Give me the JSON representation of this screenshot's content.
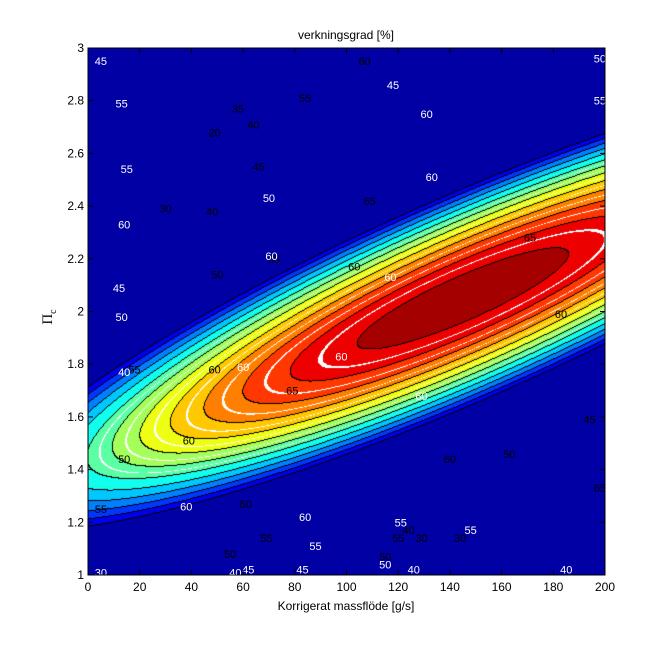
{
  "chart_data": {
    "type": "contour",
    "title": "verkningsgrad [%]",
    "xlabel": "Korrigerat massflöde [g/s]",
    "ylabel": "Π",
    "ylabel_subscript": "c",
    "xlim": [
      0,
      200
    ],
    "ylim": [
      1,
      3
    ],
    "xticks": [
      "0",
      "20",
      "40",
      "60",
      "80",
      "100",
      "120",
      "140",
      "160",
      "180",
      "200"
    ],
    "yticks": [
      "1",
      "1.2",
      "1.4",
      "1.6",
      "1.8",
      "2",
      "2.2",
      "2.4",
      "2.6",
      "2.8",
      "3"
    ],
    "grid": false,
    "filled_contours": {
      "colormap": "jet",
      "levels": [
        0,
        5,
        10,
        15,
        20,
        25,
        30,
        35,
        40,
        45,
        50,
        55,
        60,
        65,
        70
      ],
      "peak": {
        "x": 145,
        "y": 2.05,
        "value": 68
      },
      "labels": [
        {
          "x": 58,
          "y": 2.77,
          "text": "35"
        },
        {
          "x": 84,
          "y": 2.81,
          "text": "55"
        },
        {
          "x": 107,
          "y": 2.95,
          "text": "60"
        },
        {
          "x": 64,
          "y": 2.71,
          "text": "40"
        },
        {
          "x": 66,
          "y": 2.55,
          "text": "45"
        },
        {
          "x": 49,
          "y": 2.68,
          "text": "20"
        },
        {
          "x": 30,
          "y": 2.39,
          "text": "30"
        },
        {
          "x": 48,
          "y": 2.38,
          "text": "40"
        },
        {
          "x": 50,
          "y": 2.14,
          "text": "50"
        },
        {
          "x": 72,
          "y": 2.2,
          "text": "55"
        },
        {
          "x": 109,
          "y": 2.42,
          "text": "65"
        },
        {
          "x": 171,
          "y": 2.28,
          "text": "65"
        },
        {
          "x": 183,
          "y": 1.99,
          "text": "60"
        },
        {
          "x": 103,
          "y": 2.17,
          "text": "60"
        },
        {
          "x": 79,
          "y": 1.7,
          "text": "65"
        },
        {
          "x": 194,
          "y": 1.59,
          "text": "45"
        },
        {
          "x": 140,
          "y": 1.44,
          "text": "60"
        },
        {
          "x": 163,
          "y": 1.46,
          "text": "50"
        },
        {
          "x": 49,
          "y": 1.78,
          "text": "60"
        },
        {
          "x": 39,
          "y": 1.51,
          "text": "60"
        },
        {
          "x": 18,
          "y": 1.78,
          "text": "55"
        },
        {
          "x": 14,
          "y": 1.44,
          "text": "50"
        },
        {
          "x": 5,
          "y": 1.25,
          "text": "55"
        },
        {
          "x": 61,
          "y": 1.27,
          "text": "60"
        },
        {
          "x": 69,
          "y": 1.14,
          "text": "55"
        },
        {
          "x": 55,
          "y": 1.08,
          "text": "50"
        },
        {
          "x": 120,
          "y": 1.14,
          "text": "55"
        },
        {
          "x": 115,
          "y": 1.07,
          "text": "50"
        },
        {
          "x": 124,
          "y": 1.17,
          "text": "40"
        },
        {
          "x": 129,
          "y": 1.14,
          "text": "30"
        },
        {
          "x": 144,
          "y": 1.14,
          "text": "30"
        },
        {
          "x": 198,
          "y": 1.33,
          "text": "65"
        }
      ]
    },
    "line_contours": {
      "color": "#ffffff",
      "labels": [
        {
          "x": 5,
          "y": 2.95,
          "text": "45"
        },
        {
          "x": 13,
          "y": 2.79,
          "text": "55"
        },
        {
          "x": 15,
          "y": 2.54,
          "text": "55"
        },
        {
          "x": 14,
          "y": 2.33,
          "text": "60"
        },
        {
          "x": 12,
          "y": 2.09,
          "text": "45"
        },
        {
          "x": 13,
          "y": 1.98,
          "text": "50"
        },
        {
          "x": 14,
          "y": 1.77,
          "text": "40"
        },
        {
          "x": 70,
          "y": 2.43,
          "text": "50"
        },
        {
          "x": 71,
          "y": 2.21,
          "text": "60"
        },
        {
          "x": 118,
          "y": 2.86,
          "text": "45"
        },
        {
          "x": 131,
          "y": 2.75,
          "text": "60"
        },
        {
          "x": 133,
          "y": 2.51,
          "text": "60"
        },
        {
          "x": 117,
          "y": 2.13,
          "text": "60"
        },
        {
          "x": 98,
          "y": 1.83,
          "text": "60"
        },
        {
          "x": 129,
          "y": 1.68,
          "text": "60"
        },
        {
          "x": 198,
          "y": 2.96,
          "text": "50"
        },
        {
          "x": 198,
          "y": 2.8,
          "text": "55"
        },
        {
          "x": 60,
          "y": 1.79,
          "text": "60"
        },
        {
          "x": 38,
          "y": 1.26,
          "text": "60"
        },
        {
          "x": 84,
          "y": 1.22,
          "text": "60"
        },
        {
          "x": 88,
          "y": 1.11,
          "text": "55"
        },
        {
          "x": 121,
          "y": 1.2,
          "text": "55"
        },
        {
          "x": 148,
          "y": 1.17,
          "text": "55"
        },
        {
          "x": 115,
          "y": 1.04,
          "text": "50"
        },
        {
          "x": 83,
          "y": 1.02,
          "text": "45"
        },
        {
          "x": 62,
          "y": 1.02,
          "text": "45"
        },
        {
          "x": 57,
          "y": 1.01,
          "text": "40"
        },
        {
          "x": 5,
          "y": 1.01,
          "text": "30"
        },
        {
          "x": 126,
          "y": 1.02,
          "text": "40"
        },
        {
          "x": 185,
          "y": 1.02,
          "text": "40"
        }
      ]
    }
  }
}
